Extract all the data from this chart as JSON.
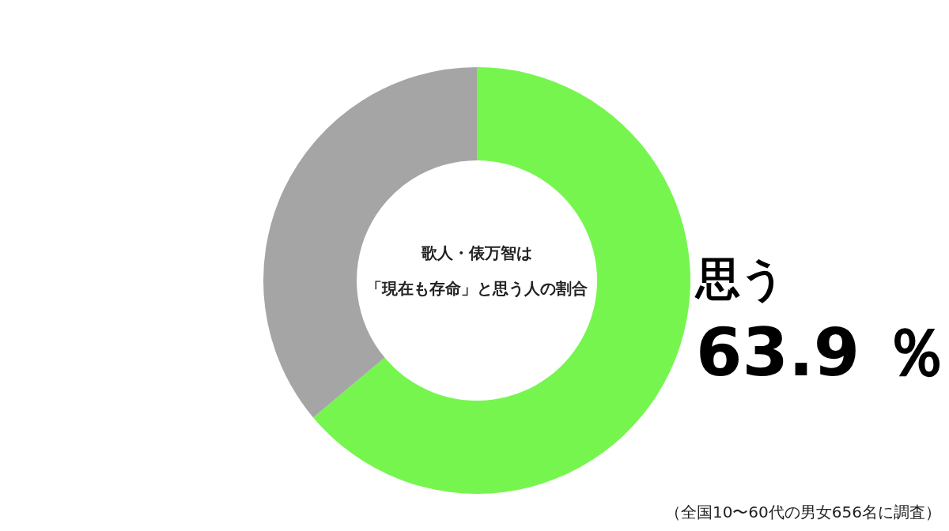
{
  "chart_data": {
    "type": "donut",
    "title": "歌人・俵万智は「現在も存命」と思う人の割合",
    "categories": [
      "思う",
      null
    ],
    "values": [
      63.9,
      36.1
    ],
    "colors": [
      "#77f54f",
      "#a5a5a5"
    ],
    "value_labels": [
      "63.9 ％",
      null
    ],
    "legend": false,
    "annotations": [
      "（全国10〜60代の男女656名に調査）"
    ]
  }
}
